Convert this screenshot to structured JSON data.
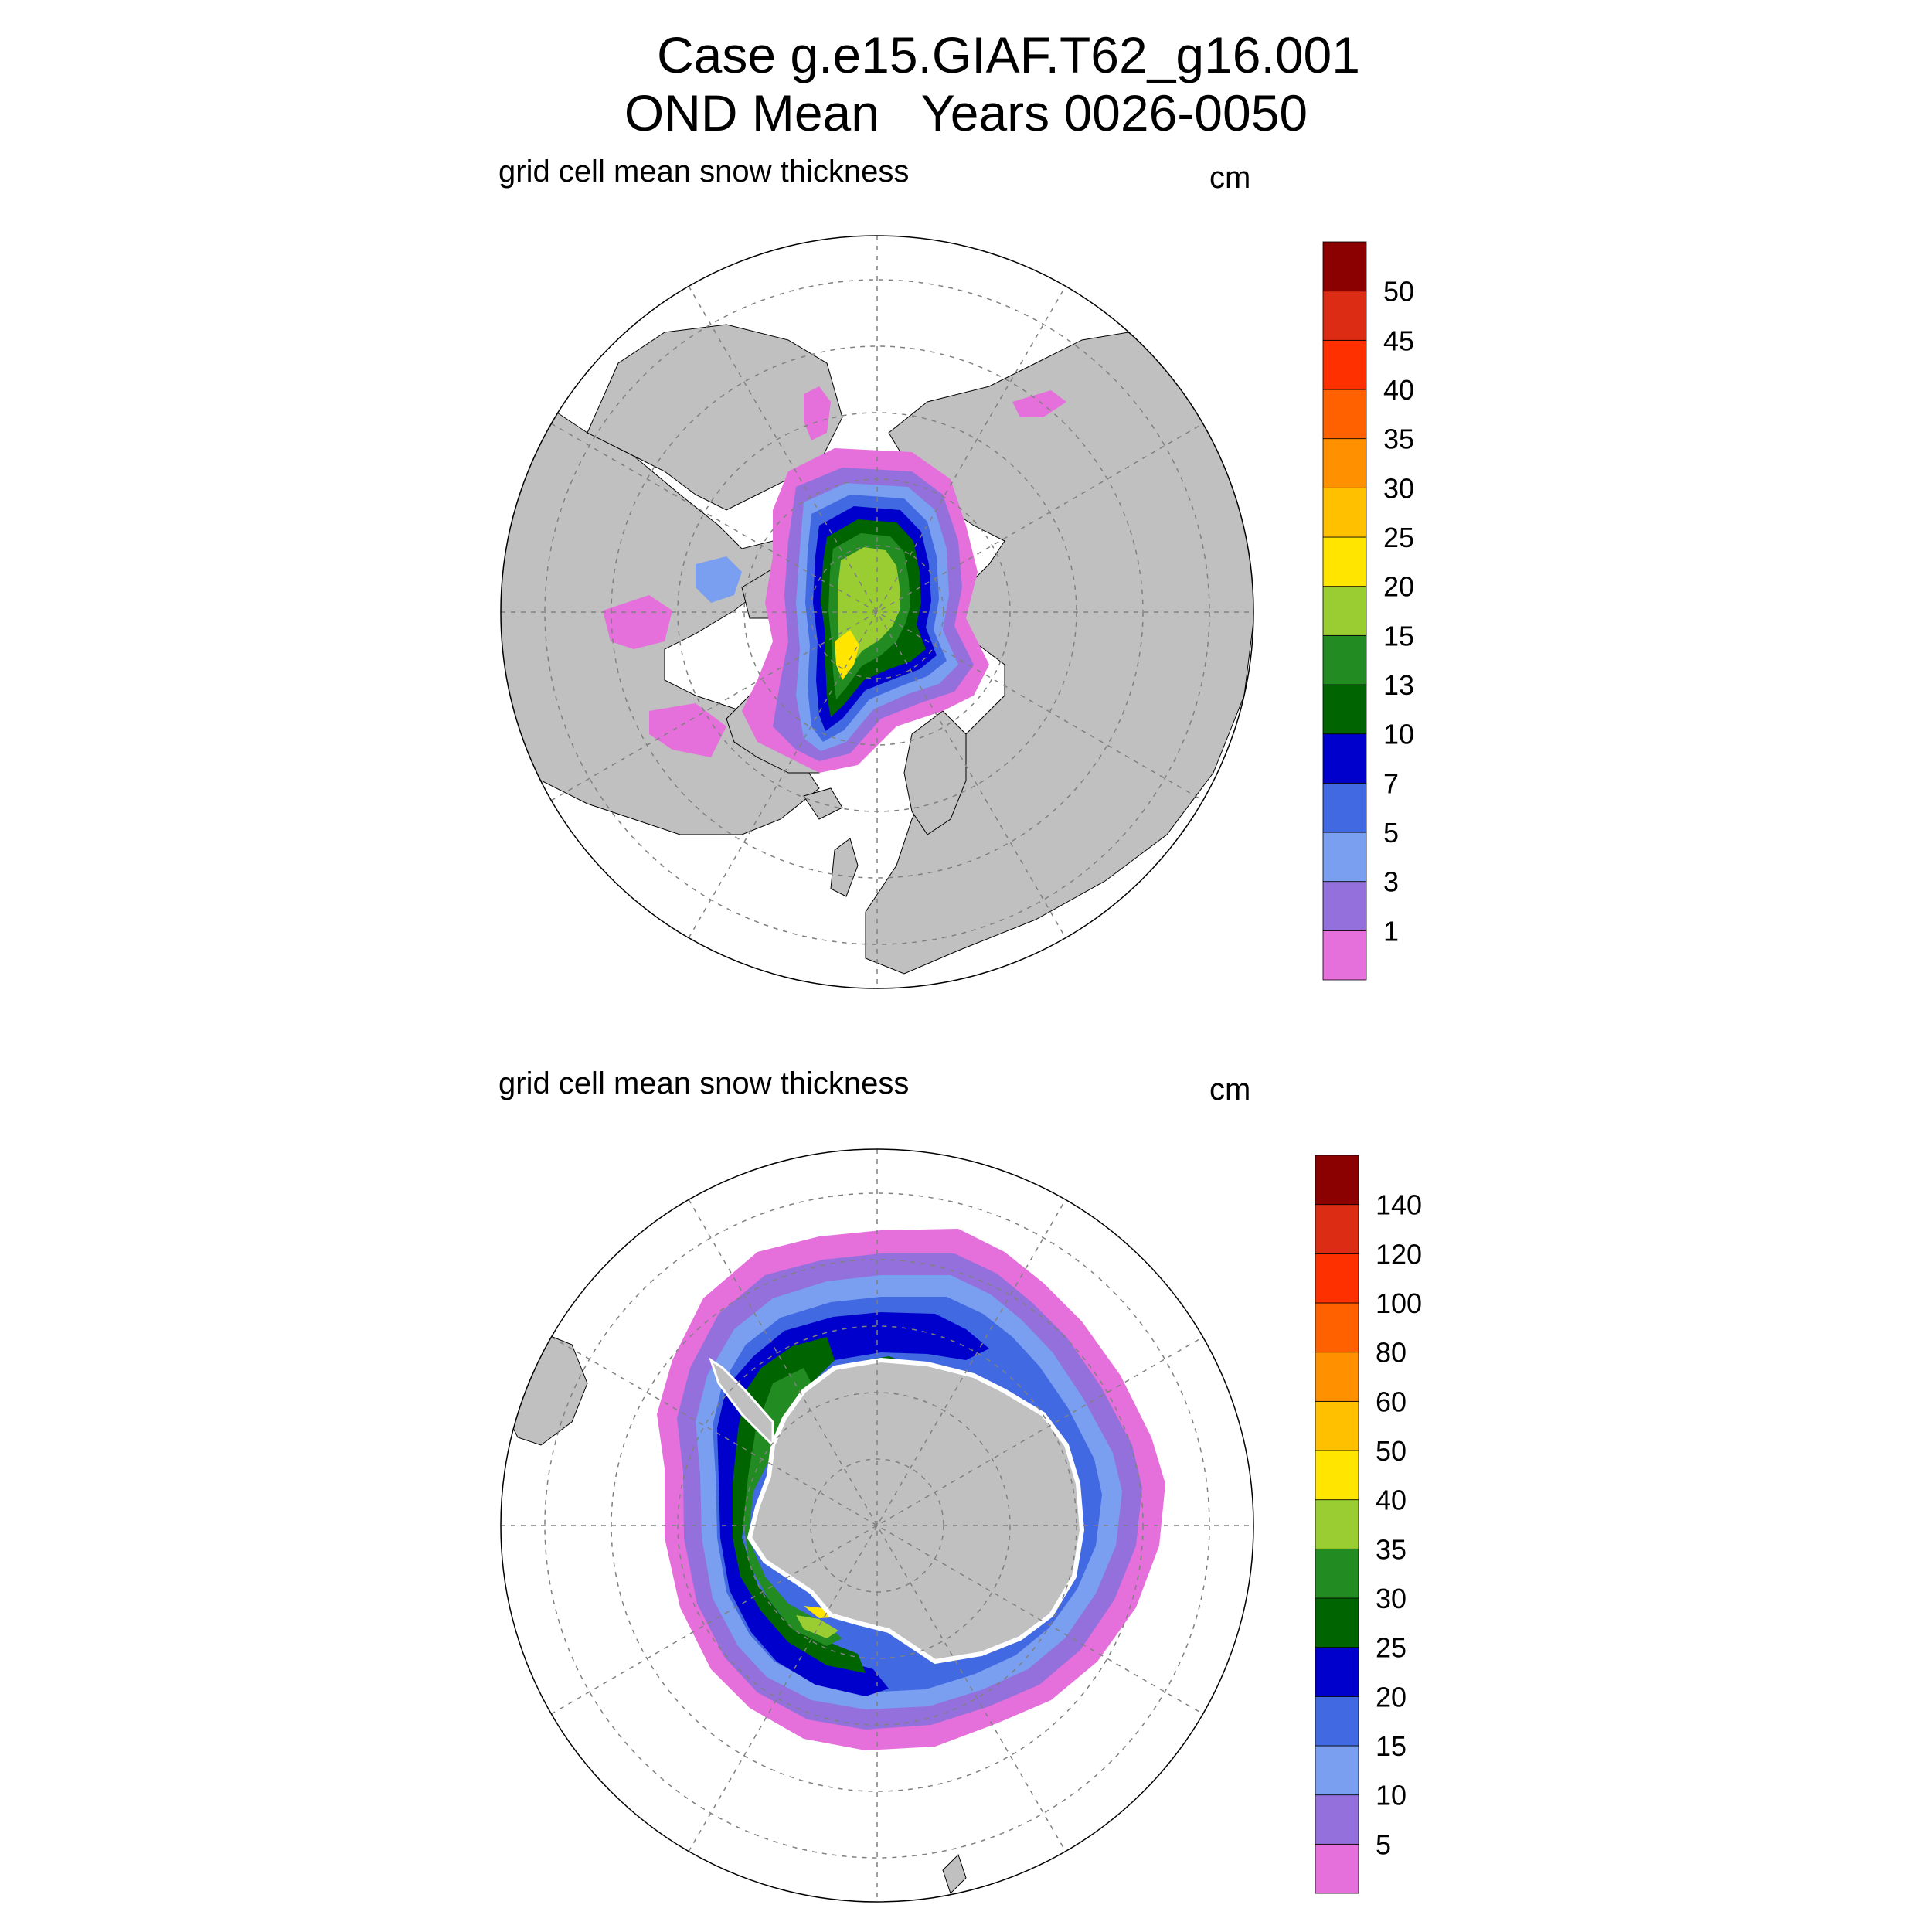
{
  "header": {
    "title_line1": "Case g.e15.GIAF.T62_g16.001",
    "title_line2": "OND Mean   Years 0026-0050"
  },
  "panels": [
    {
      "label": "grid cell mean snow thickness",
      "units": "cm",
      "hemisphere": "north",
      "colorbar": {
        "ticks": [
          "1",
          "3",
          "5",
          "7",
          "10",
          "13",
          "15",
          "20",
          "25",
          "30",
          "35",
          "40",
          "45",
          "50"
        ],
        "colors": [
          "#e56fdb",
          "#9370db",
          "#7a9ef0",
          "#4169e1",
          "#0000cd",
          "#006400",
          "#228b22",
          "#9acd32",
          "#ffe500",
          "#ffc000",
          "#ff9000",
          "#ff6000",
          "#ff3000",
          "#dc2c14",
          "#8b0000"
        ]
      }
    },
    {
      "label": "grid cell mean snow thickness",
      "units": "cm",
      "hemisphere": "south",
      "colorbar": {
        "ticks": [
          "5",
          "10",
          "15",
          "20",
          "25",
          "30",
          "35",
          "40",
          "50",
          "60",
          "80",
          "100",
          "120",
          "140"
        ],
        "colors": [
          "#e56fdb",
          "#9370db",
          "#7a9ef0",
          "#4169e1",
          "#0000cd",
          "#006400",
          "#228b22",
          "#9acd32",
          "#ffe500",
          "#ffc000",
          "#ff9000",
          "#ff6000",
          "#ff3000",
          "#dc2c14",
          "#8b0000"
        ]
      }
    }
  ],
  "map_colors": {
    "land": "#c0c0c0",
    "ocean": "#ffffff",
    "grid": "#808080"
  }
}
